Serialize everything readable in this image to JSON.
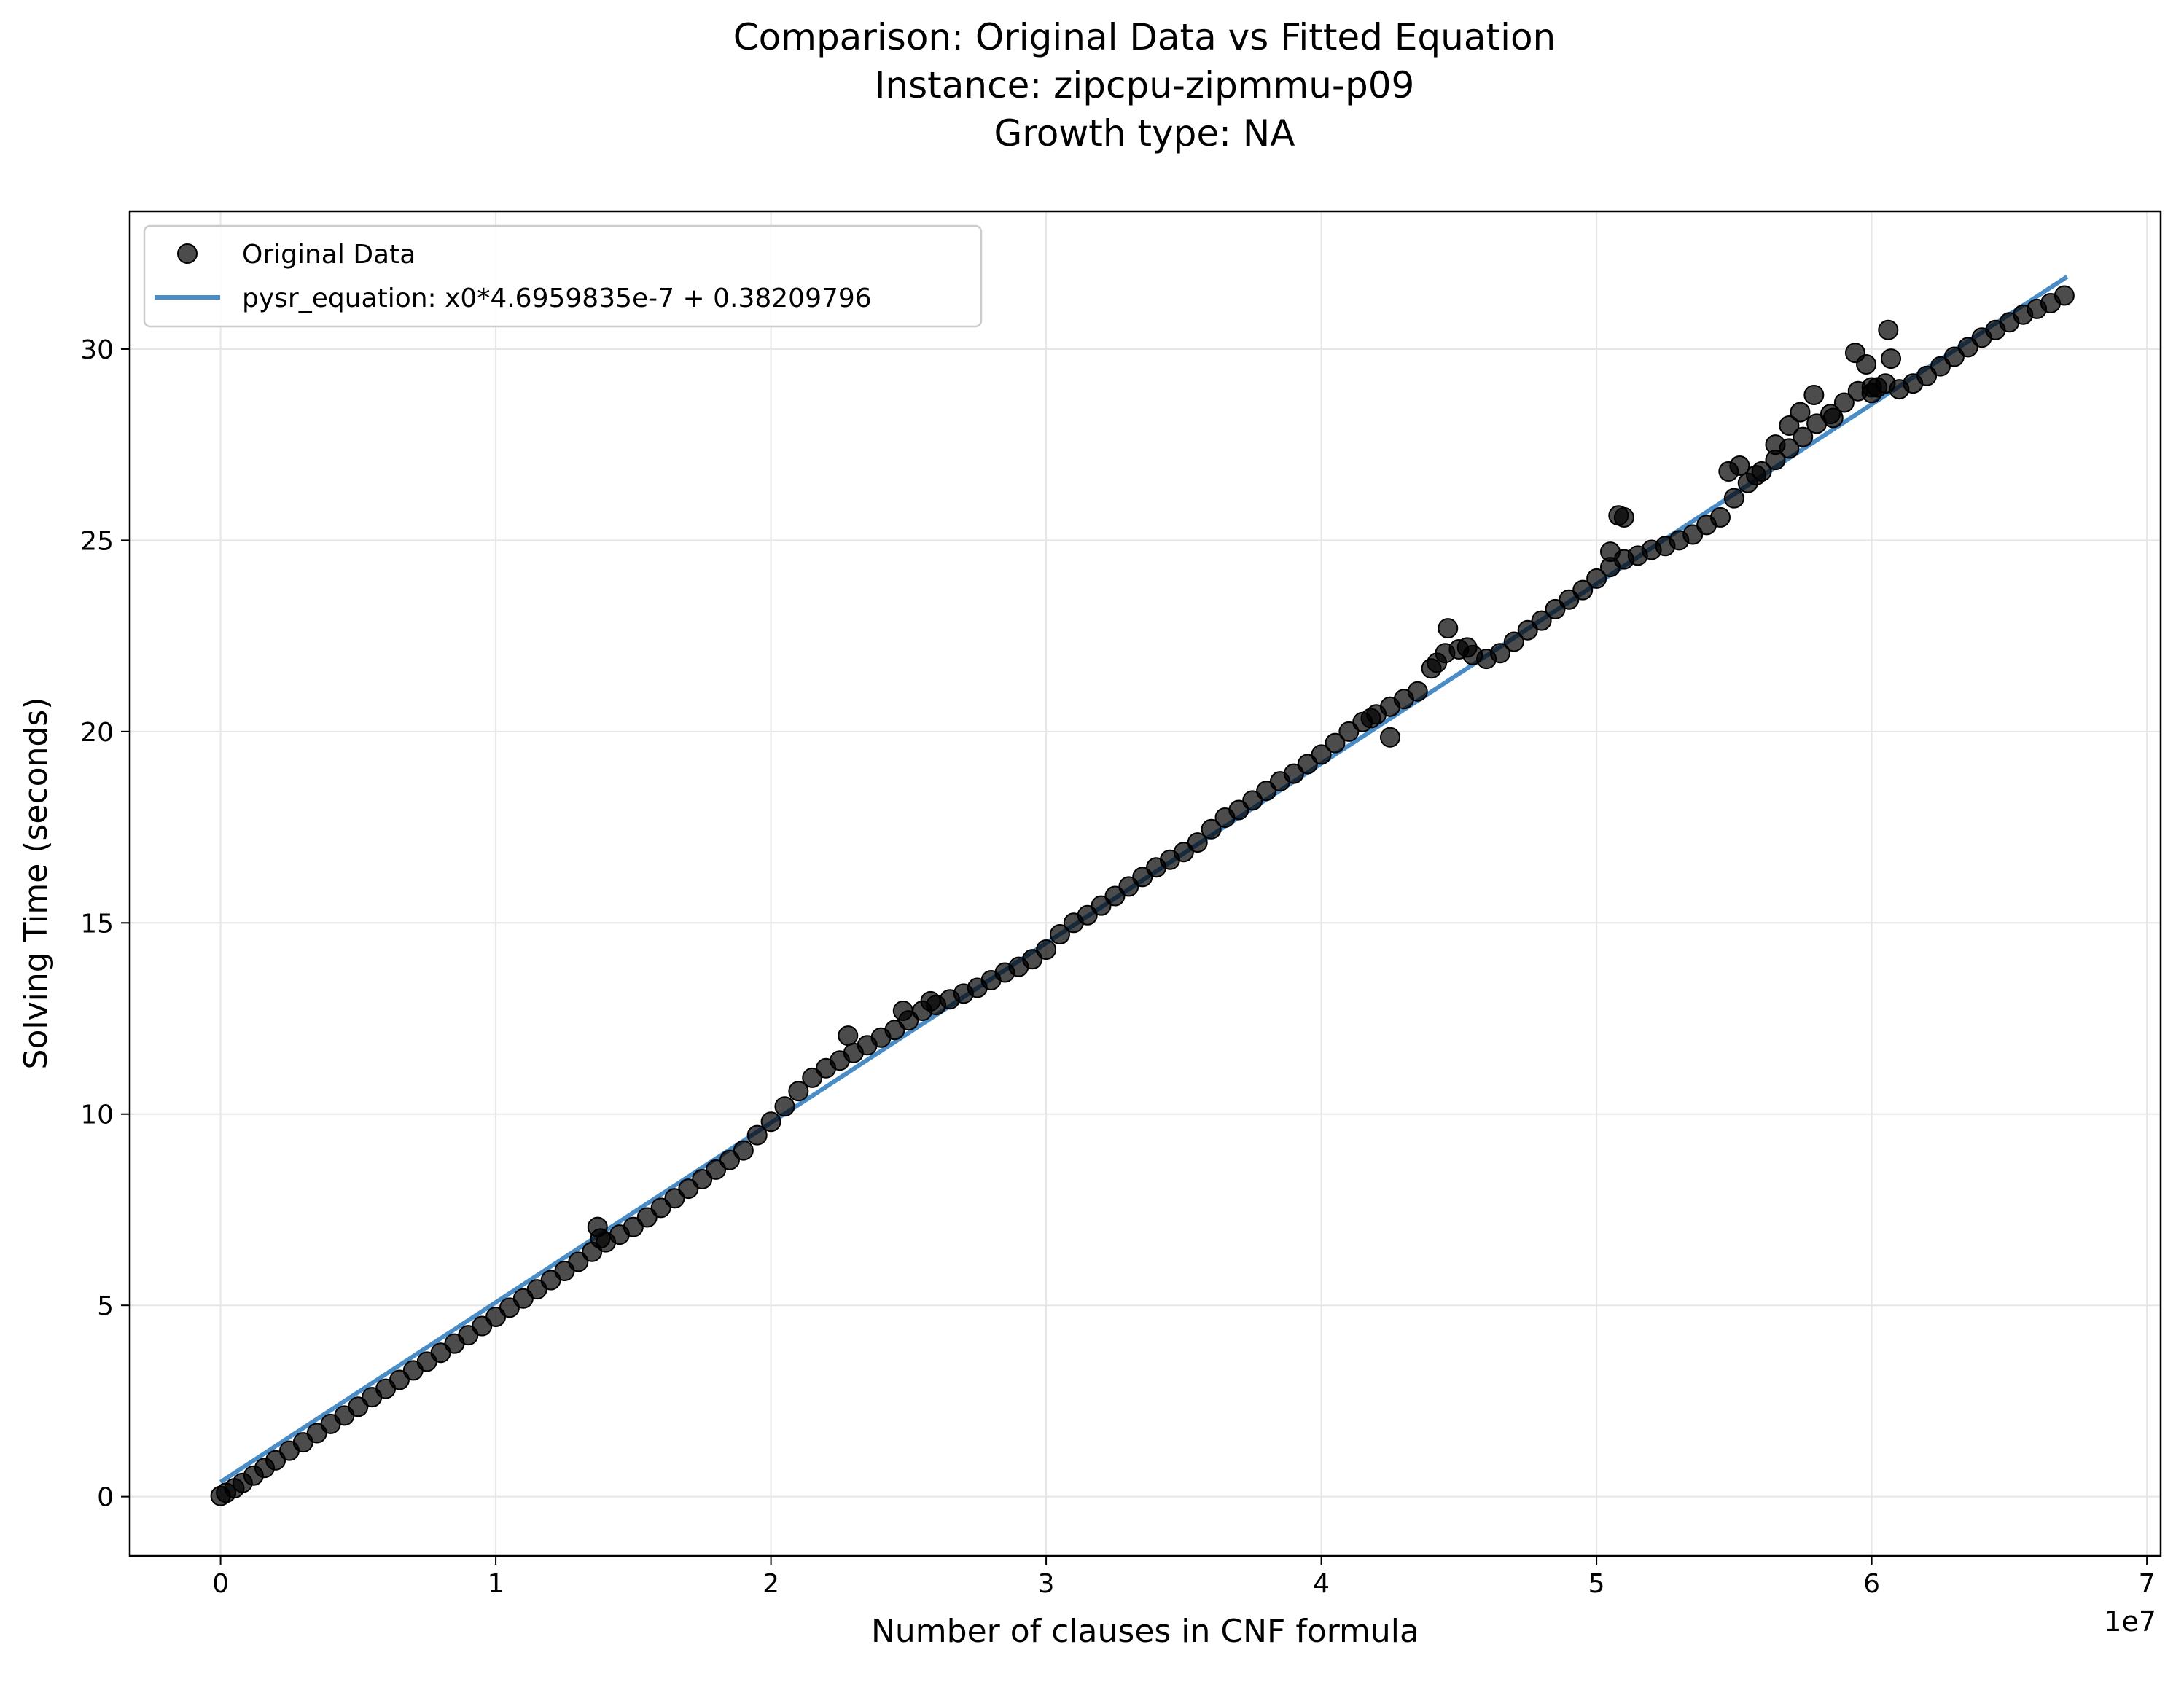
{
  "chart_data": {
    "type": "scatter",
    "title_lines": [
      "Comparison: Original Data vs Fitted Equation",
      "Instance: zipcpu-zipmmu-p09",
      "Growth type: NA"
    ],
    "xlabel": "Number of clauses in CNF formula",
    "ylabel": "Solving Time (seconds)",
    "x_offset_label": "1e7",
    "xlim": [
      -0.33,
      7.05
    ],
    "ylim": [
      -1.55,
      33.6
    ],
    "x_scale_note": "x values expressed in units of 1e7 clauses",
    "xticks": [
      0,
      1,
      2,
      3,
      4,
      5,
      6,
      7
    ],
    "xtick_labels": [
      "0",
      "1",
      "2",
      "3",
      "4",
      "5",
      "6",
      "7"
    ],
    "yticks": [
      0,
      5,
      10,
      15,
      20,
      25,
      30
    ],
    "ytick_labels": [
      "0",
      "5",
      "10",
      "15",
      "20",
      "25",
      "30"
    ],
    "grid": true,
    "legend_position": "top-left",
    "series": [
      {
        "name": "Original Data",
        "kind": "scatter",
        "color": "#000000",
        "points": [
          [
            0.0,
            0.02
          ],
          [
            0.02,
            0.1
          ],
          [
            0.05,
            0.22
          ],
          [
            0.08,
            0.36
          ],
          [
            0.12,
            0.55
          ],
          [
            0.16,
            0.75
          ],
          [
            0.2,
            0.95
          ],
          [
            0.25,
            1.2
          ],
          [
            0.3,
            1.42
          ],
          [
            0.35,
            1.66
          ],
          [
            0.4,
            1.9
          ],
          [
            0.45,
            2.12
          ],
          [
            0.5,
            2.35
          ],
          [
            0.55,
            2.6
          ],
          [
            0.6,
            2.82
          ],
          [
            0.65,
            3.05
          ],
          [
            0.7,
            3.3
          ],
          [
            0.75,
            3.53
          ],
          [
            0.8,
            3.76
          ],
          [
            0.85,
            4.0
          ],
          [
            0.9,
            4.22
          ],
          [
            0.95,
            4.46
          ],
          [
            1.0,
            4.7
          ],
          [
            1.05,
            4.94
          ],
          [
            1.1,
            5.18
          ],
          [
            1.15,
            5.42
          ],
          [
            1.2,
            5.66
          ],
          [
            1.25,
            5.9
          ],
          [
            1.3,
            6.14
          ],
          [
            1.35,
            6.4
          ],
          [
            1.4,
            6.65
          ],
          [
            1.45,
            6.85
          ],
          [
            1.5,
            7.05
          ],
          [
            1.55,
            7.3
          ],
          [
            1.6,
            7.55
          ],
          [
            1.65,
            7.8
          ],
          [
            1.7,
            8.05
          ],
          [
            1.75,
            8.3
          ],
          [
            1.8,
            8.55
          ],
          [
            1.85,
            8.8
          ],
          [
            1.9,
            9.05
          ],
          [
            1.95,
            9.45
          ],
          [
            2.0,
            9.8
          ],
          [
            2.05,
            10.2
          ],
          [
            2.1,
            10.6
          ],
          [
            2.15,
            10.95
          ],
          [
            2.2,
            11.2
          ],
          [
            2.25,
            11.4
          ],
          [
            2.3,
            11.6
          ],
          [
            2.35,
            11.8
          ],
          [
            2.4,
            12.0
          ],
          [
            2.45,
            12.2
          ],
          [
            2.5,
            12.45
          ],
          [
            2.55,
            12.7
          ],
          [
            2.6,
            12.85
          ],
          [
            2.65,
            13.0
          ],
          [
            2.7,
            13.15
          ],
          [
            2.75,
            13.3
          ],
          [
            2.8,
            13.5
          ],
          [
            2.85,
            13.7
          ],
          [
            2.9,
            13.85
          ],
          [
            2.95,
            14.05
          ],
          [
            3.0,
            14.3
          ],
          [
            3.05,
            14.7
          ],
          [
            3.1,
            15.0
          ],
          [
            3.15,
            15.2
          ],
          [
            3.2,
            15.45
          ],
          [
            3.25,
            15.7
          ],
          [
            3.3,
            15.95
          ],
          [
            3.35,
            16.2
          ],
          [
            3.4,
            16.45
          ],
          [
            3.45,
            16.65
          ],
          [
            3.5,
            16.85
          ],
          [
            3.55,
            17.1
          ],
          [
            3.6,
            17.45
          ],
          [
            3.65,
            17.75
          ],
          [
            3.7,
            17.95
          ],
          [
            3.75,
            18.2
          ],
          [
            3.8,
            18.45
          ],
          [
            3.85,
            18.7
          ],
          [
            3.9,
            18.9
          ],
          [
            3.95,
            19.15
          ],
          [
            4.0,
            19.4
          ],
          [
            4.05,
            19.7
          ],
          [
            4.1,
            20.0
          ],
          [
            4.15,
            20.25
          ],
          [
            4.2,
            20.45
          ],
          [
            4.25,
            20.65
          ],
          [
            4.3,
            20.85
          ],
          [
            4.35,
            21.05
          ],
          [
            4.4,
            21.65
          ],
          [
            4.45,
            22.05
          ],
          [
            4.5,
            22.15
          ],
          [
            4.55,
            22.0
          ],
          [
            4.6,
            21.9
          ],
          [
            4.65,
            22.05
          ],
          [
            4.7,
            22.35
          ],
          [
            4.75,
            22.65
          ],
          [
            4.8,
            22.9
          ],
          [
            4.85,
            23.2
          ],
          [
            4.9,
            23.45
          ],
          [
            4.95,
            23.7
          ],
          [
            5.0,
            24.0
          ],
          [
            5.05,
            24.3
          ],
          [
            5.1,
            24.5
          ],
          [
            5.15,
            24.6
          ],
          [
            5.2,
            24.75
          ],
          [
            5.25,
            24.85
          ],
          [
            5.3,
            25.0
          ],
          [
            5.35,
            25.15
          ],
          [
            5.4,
            25.4
          ],
          [
            5.45,
            25.6
          ],
          [
            5.5,
            26.1
          ],
          [
            5.55,
            26.5
          ],
          [
            5.6,
            26.8
          ],
          [
            5.65,
            27.1
          ],
          [
            5.7,
            27.4
          ],
          [
            5.75,
            27.7
          ],
          [
            5.8,
            28.05
          ],
          [
            5.85,
            28.3
          ],
          [
            5.9,
            28.6
          ],
          [
            5.95,
            28.9
          ],
          [
            6.0,
            29.0
          ],
          [
            6.05,
            29.1
          ],
          [
            6.1,
            28.95
          ],
          [
            6.15,
            29.1
          ],
          [
            6.2,
            29.3
          ],
          [
            6.25,
            29.55
          ],
          [
            6.3,
            29.8
          ],
          [
            6.35,
            30.05
          ],
          [
            6.4,
            30.3
          ],
          [
            6.45,
            30.5
          ],
          [
            6.5,
            30.7
          ],
          [
            6.55,
            30.9
          ],
          [
            6.6,
            31.05
          ],
          [
            6.65,
            31.2
          ],
          [
            6.7,
            31.4
          ],
          [
            1.37,
            7.05
          ],
          [
            1.38,
            6.75
          ],
          [
            2.28,
            12.05
          ],
          [
            2.48,
            12.7
          ],
          [
            2.58,
            12.95
          ],
          [
            4.18,
            20.35
          ],
          [
            4.25,
            19.85
          ],
          [
            4.46,
            22.7
          ],
          [
            4.42,
            21.8
          ],
          [
            4.53,
            22.2
          ],
          [
            5.05,
            24.7
          ],
          [
            5.08,
            25.65
          ],
          [
            5.1,
            25.6
          ],
          [
            5.48,
            26.8
          ],
          [
            5.52,
            26.95
          ],
          [
            5.58,
            26.7
          ],
          [
            5.65,
            27.5
          ],
          [
            5.7,
            28.0
          ],
          [
            5.74,
            28.35
          ],
          [
            5.79,
            28.8
          ],
          [
            5.86,
            28.2
          ],
          [
            5.94,
            29.9
          ],
          [
            5.98,
            29.6
          ],
          [
            6.02,
            29.0
          ],
          [
            6.06,
            30.5
          ],
          [
            6.07,
            29.75
          ],
          [
            6.0,
            28.85
          ]
        ]
      },
      {
        "name": "pysr_equation: x0*4.6959835e-7 + 0.38209796",
        "kind": "line",
        "color": "#4a8cc6",
        "x": [
          0.0,
          6.71
        ],
        "y": [
          0.38209796,
          31.89
        ]
      }
    ]
  }
}
